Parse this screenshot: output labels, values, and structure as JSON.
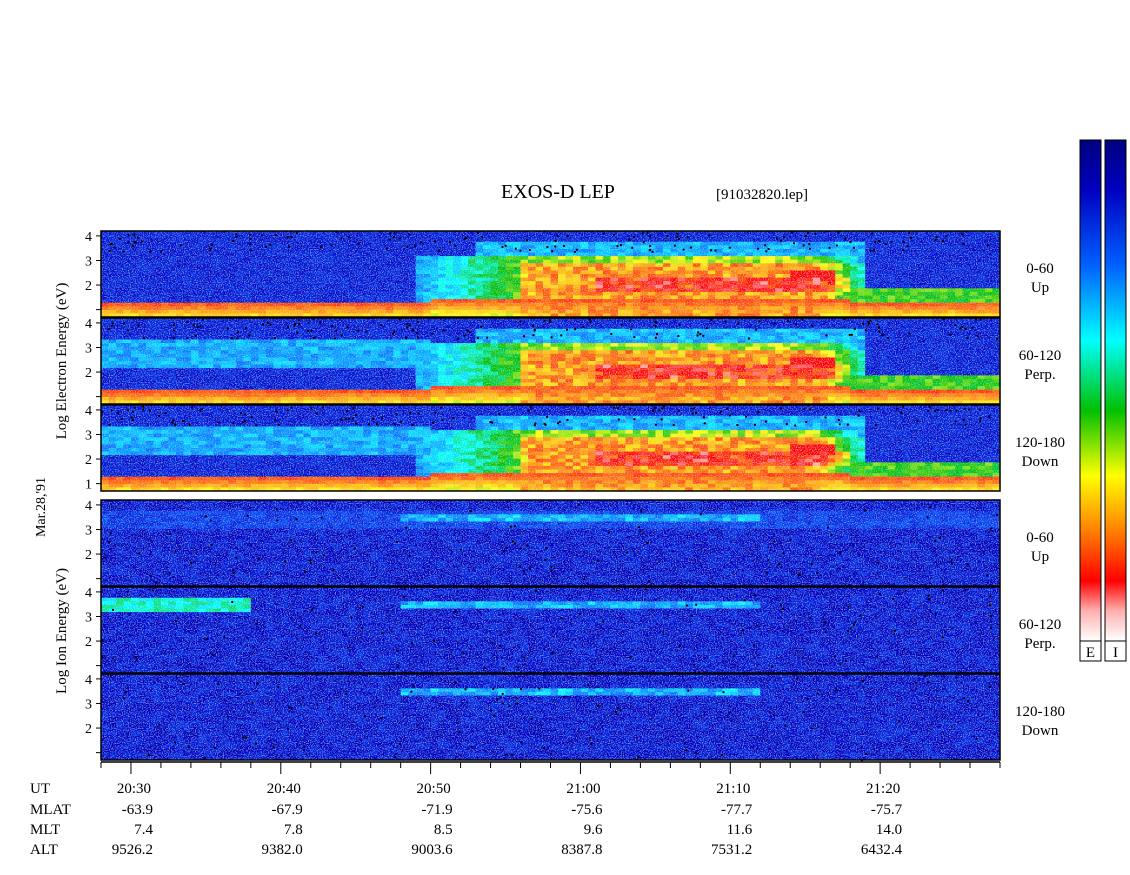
{
  "header": {
    "title": "EXOS-D LEP",
    "filename": "[91032820.lep]",
    "date_label": "Mar.28,'91"
  },
  "groups": [
    {
      "species": "Electron",
      "ylabel_words": [
        "Log",
        "Electron",
        "Energy",
        "(eV)"
      ]
    },
    {
      "species": "Ion",
      "ylabel_words": [
        "Log",
        "Ion",
        "Energy",
        "(eV)"
      ]
    }
  ],
  "colorbars": [
    {
      "label": "E"
    },
    {
      "label": "I"
    }
  ],
  "colors": {
    "colormap": [
      "#ffffff",
      "#ffb0b0",
      "#ff0000",
      "#ff8000",
      "#ffff00",
      "#00c000",
      "#00ffff",
      "#0060ff",
      "#0000c0",
      "#000080"
    ]
  },
  "chart_data": {
    "type": "heatmap",
    "y_scale": "log10",
    "y_range": [
      0.7,
      4.2
    ],
    "y_ticks": [
      "1",
      "2",
      "3",
      "4"
    ],
    "panels": [
      {
        "species": "electron",
        "pitch_angle": "0-60",
        "direction": "Up"
      },
      {
        "species": "electron",
        "pitch_angle": "60-120",
        "direction": "Perp."
      },
      {
        "species": "electron",
        "pitch_angle": "120-180",
        "direction": "Down"
      },
      {
        "species": "ion",
        "pitch_angle": "0-60",
        "direction": "Up"
      },
      {
        "species": "ion",
        "pitch_angle": "60-120",
        "direction": "Perp."
      },
      {
        "species": "ion",
        "pitch_angle": "120-180",
        "direction": "Down"
      }
    ],
    "x_axis": {
      "start_time": "20:28",
      "end_time": "21:28",
      "ticks": [
        "20:30",
        "20:40",
        "20:50",
        "21:00",
        "21:10",
        "21:20"
      ],
      "tick_minutes_from_start": [
        2,
        12,
        22,
        32,
        42,
        52
      ],
      "minor_tick_step_minutes": 2
    },
    "ephemeris": [
      {
        "label": "UT",
        "values": [
          "20:30",
          "20:40",
          "20:50",
          "21:00",
          "21:10",
          "21:20"
        ]
      },
      {
        "label": "MLAT",
        "values": [
          "-63.9",
          "-67.9",
          "-71.9",
          "-75.6",
          "-77.7",
          "-75.7"
        ]
      },
      {
        "label": "MLT",
        "values": [
          "7.4",
          "7.8",
          "8.5",
          "9.6",
          "11.6",
          "14.0"
        ]
      },
      {
        "label": "ALT",
        "values": [
          "9526.2",
          "9382.0",
          "9003.6",
          "8387.8",
          "7531.2",
          "6432.4"
        ]
      }
    ]
  }
}
